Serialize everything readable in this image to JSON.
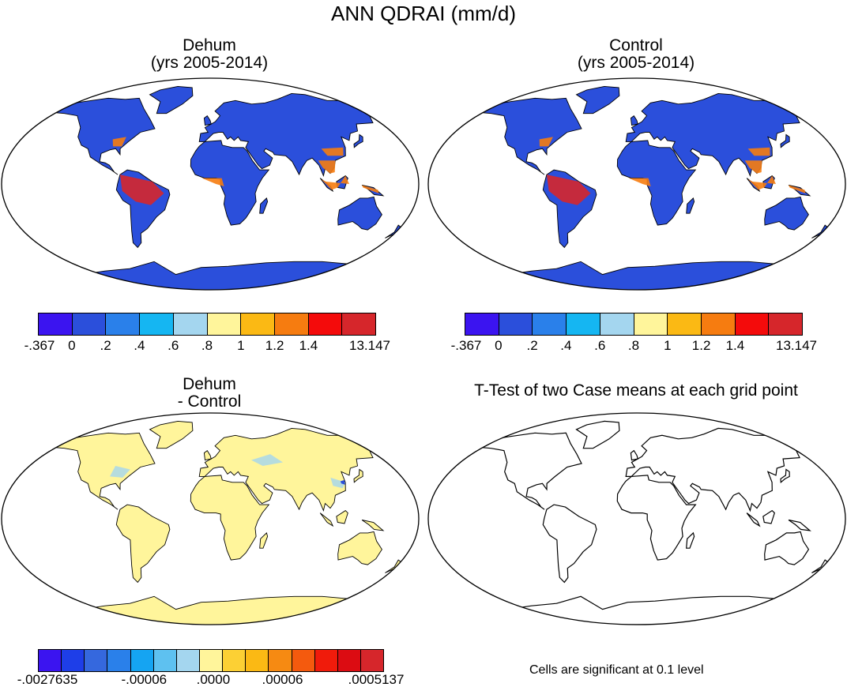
{
  "title": "ANN QDRAI (mm/d)",
  "panels": {
    "dehum": {
      "title_line1": "Dehum",
      "title_line2": "(yrs 2005-2014)"
    },
    "control": {
      "title_line1": "Control",
      "title_line2": "(yrs 2005-2014)"
    },
    "diff": {
      "title_line1": "Dehum",
      "title_line2": "- Control"
    },
    "ttest": {
      "title": "T-Test of two Case means at each grid point",
      "footnote": "Cells are significant at 0.1 level"
    }
  },
  "colorbar_main": {
    "colors": [
      "#3b14f0",
      "#2b4fdb",
      "#2a80ea",
      "#15b6f2",
      "#a4d6ef",
      "#fff59b",
      "#fbb914",
      "#f67c10",
      "#f40b0b",
      "#d6262b"
    ],
    "labels": [
      ".367",
      "0",
      ".2",
      ".4",
      ".6",
      ".8",
      "1",
      "1.2",
      "1.4",
      "13.147"
    ],
    "label_prefix_first": "-"
  },
  "colorbar_main_labels": [
    "-.367",
    "0",
    ".2",
    ".4",
    ".6",
    ".8",
    "1",
    "1.2",
    "1.4",
    "13.147"
  ],
  "colorbar_diff": {
    "colors": [
      "#3b14f0",
      "#1e3ee8",
      "#3568de",
      "#2a80ea",
      "#15a4f2",
      "#5ec1f0",
      "#a4d6ef",
      "#fff59b",
      "#fcd034",
      "#fbb914",
      "#f68a12",
      "#f45a0e",
      "#f01b0b",
      "#dc0c12",
      "#d6262b"
    ],
    "labels": [
      "-.0027635",
      "-.00006",
      ".0000",
      ".00006",
      ".0005137"
    ]
  },
  "colors": {
    "ocean": "#ffffff",
    "land_main": "#2b4fdb",
    "land_diff": "#fff59b",
    "coast": "#000000"
  }
}
